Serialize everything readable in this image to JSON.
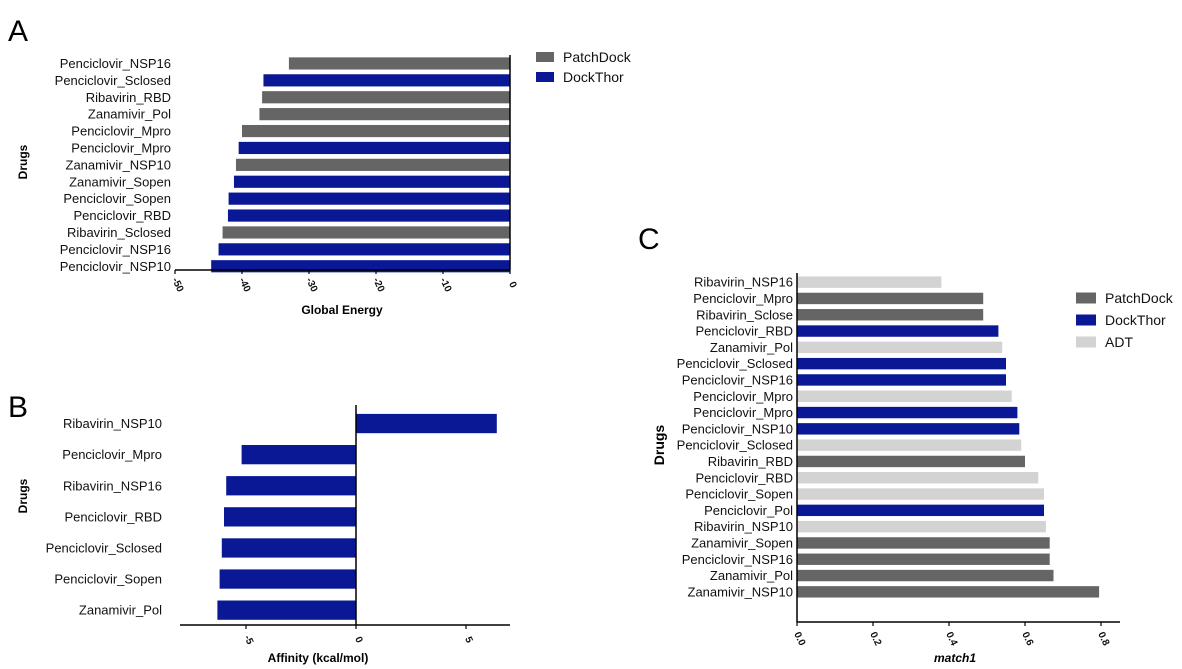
{
  "panels": [
    {
      "letter": "A",
      "chart_data": {
        "type": "bar",
        "orientation": "horizontal",
        "xlabel": "Global Energy",
        "ylabel": "Drugs",
        "xlim": [
          -50,
          0
        ],
        "xticks": [
          -50,
          -40,
          -30,
          -20,
          -10,
          0
        ],
        "xtick_labels": [
          "-50",
          "-40",
          "-30",
          "-20",
          "-10",
          "0"
        ],
        "legend": "right",
        "series_colors": {
          "PatchDock": "#656565",
          "DockThor": "#0a1896"
        },
        "legend_entries": [
          "PatchDock",
          "DockThor"
        ],
        "categories": [
          "Penciclovir_NSP16",
          "Penciclovir_Sclosed",
          "Ribavirin_RBD",
          "Zanamivir_Pol",
          "Penciclovir_Mpro",
          "Penciclovir_Mpro",
          "Zanamivir_NSP10",
          "Zanamivir_Sopen",
          "Penciclovir_Sopen",
          "Penciclovir_RBD",
          "Ribavirin_Sclosed",
          "Penciclovir_NSP16",
          "Penciclovir_NSP10"
        ],
        "values": [
          -33.0,
          -36.8,
          -37.0,
          -37.4,
          -40.0,
          -40.5,
          -40.9,
          -41.2,
          -42.0,
          -42.1,
          -42.9,
          -43.5,
          -44.6
        ],
        "bar_series": [
          "PatchDock",
          "DockThor",
          "PatchDock",
          "PatchDock",
          "PatchDock",
          "DockThor",
          "PatchDock",
          "DockThor",
          "DockThor",
          "DockThor",
          "PatchDock",
          "DockThor",
          "DockThor"
        ]
      }
    },
    {
      "letter": "B",
      "chart_data": {
        "type": "bar",
        "orientation": "horizontal",
        "xlabel": "Affinity (kcal/mol)",
        "ylabel": "Drugs",
        "xlim": [
          -8,
          7
        ],
        "xticks": [
          -5,
          0,
          5
        ],
        "xtick_labels": [
          "-5",
          "0",
          "5"
        ],
        "series_colors": {
          "DockThor": "#0a1896"
        },
        "categories": [
          "Ribavirin_NSP10",
          "Penciclovir_Mpro",
          "Ribavirin_NSP16",
          "Penciclovir_RBD",
          "Penciclovir_Sclosed",
          "Penciclovir_Sopen",
          "Zanamivir_Pol"
        ],
        "values": [
          6.4,
          -5.2,
          -5.9,
          -6.0,
          -6.1,
          -6.2,
          -6.3
        ],
        "bar_series": [
          "DockThor",
          "DockThor",
          "DockThor",
          "DockThor",
          "DockThor",
          "DockThor",
          "DockThor"
        ]
      }
    },
    {
      "letter": "C",
      "chart_data": {
        "type": "bar",
        "orientation": "horizontal",
        "xlabel": "match1",
        "ylabel": "Drugs",
        "xlim": [
          0,
          0.85
        ],
        "xticks": [
          0,
          0.2,
          0.4,
          0.6,
          0.8
        ],
        "xtick_labels": [
          "0.0",
          "0.2",
          "0.4",
          "0.6",
          "0.8"
        ],
        "legend": "right",
        "series_colors": {
          "PatchDock": "#656565",
          "DockThor": "#0a1896",
          "ADT": "#d3d3d3"
        },
        "legend_entries": [
          "PatchDock",
          "DockThor",
          "ADT"
        ],
        "categories": [
          "Ribavirin_NSP16",
          "Penciclovir_Mpro",
          "Ribavirin_Sclose",
          "Penciclovir_RBD",
          "Zanamivir_Pol",
          "Penciclovir_Sclosed",
          "Penciclovir_NSP16",
          "Penciclovir_Mpro",
          "Penciclovir_Mpro",
          "Penciclovir_NSP10",
          "Penciclovir_Sclosed",
          "Ribavirin_RBD",
          "Penciclovir_RBD",
          "Penciclovir_Sopen",
          "Penciclovir_Pol",
          "Ribavirin_NSP10",
          "Zanamivir_Sopen",
          "Penciclovir_NSP16",
          "Zanamivir_Pol",
          "Zanamivir_NSP10"
        ],
        "values": [
          0.38,
          0.49,
          0.49,
          0.53,
          0.54,
          0.55,
          0.55,
          0.565,
          0.58,
          0.585,
          0.59,
          0.6,
          0.635,
          0.65,
          0.65,
          0.655,
          0.665,
          0.665,
          0.675,
          0.795
        ],
        "bar_series": [
          "ADT",
          "PatchDock",
          "PatchDock",
          "DockThor",
          "ADT",
          "DockThor",
          "DockThor",
          "ADT",
          "DockThor",
          "DockThor",
          "ADT",
          "PatchDock",
          "ADT",
          "ADT",
          "DockThor",
          "ADT",
          "PatchDock",
          "PatchDock",
          "PatchDock",
          "PatchDock"
        ]
      }
    }
  ]
}
